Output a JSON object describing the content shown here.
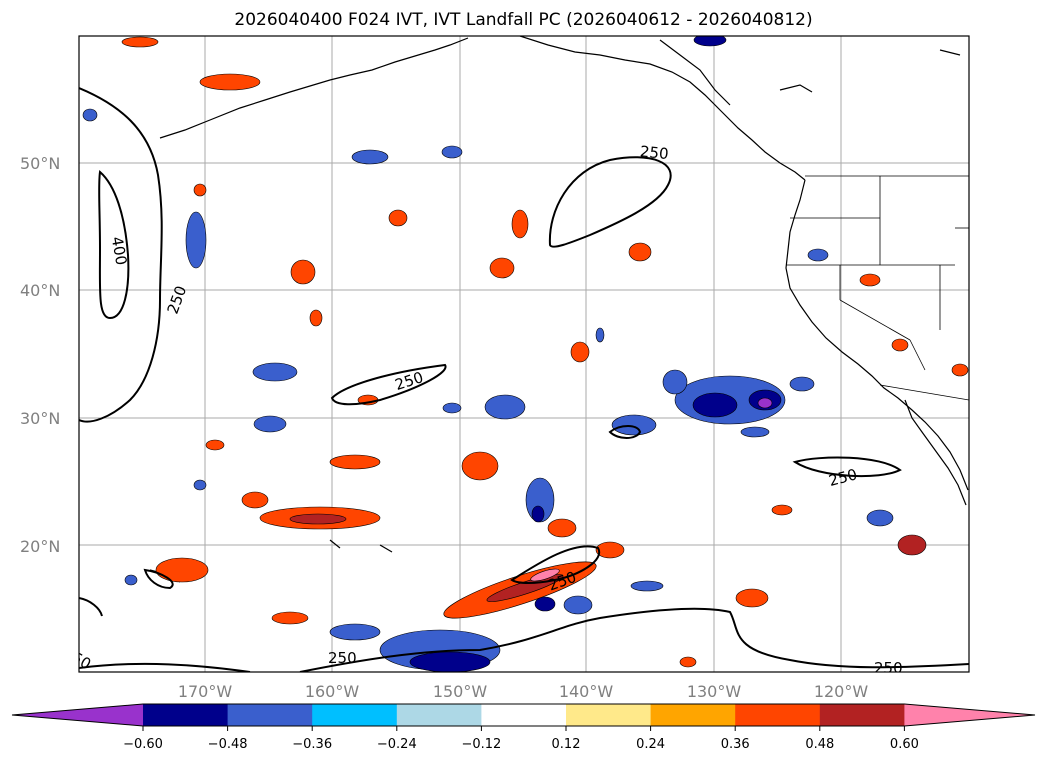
{
  "title": "2026040400 F024 IVT, IVT Landfall PC (2026040612 - 2026040812)",
  "map": {
    "lon_range": [
      -180,
      -110
    ],
    "lat_range": [
      10,
      60
    ],
    "lat_ticks": [
      "20°N",
      "30°N",
      "40°N",
      "50°N"
    ],
    "lon_ticks": [
      "170°W",
      "160°W",
      "150°W",
      "140°W",
      "130°W",
      "120°W"
    ],
    "grid": true,
    "gridline_color": "#aaaaaa",
    "land_color": "#ffffff",
    "coastline_color": "#000000"
  },
  "contours": {
    "color": "#000000",
    "labels": [
      "250",
      "250",
      "250",
      "250",
      "250",
      "250",
      "250",
      "400",
      "50"
    ]
  },
  "colorbar": {
    "orientation": "horizontal",
    "extend": "both",
    "tick_labels": [
      "−0.60",
      "−0.48",
      "−0.36",
      "−0.24",
      "−0.12",
      "0.12",
      "0.24",
      "0.36",
      "0.48",
      "0.60"
    ],
    "colors": [
      "#9932cc",
      "#00008b",
      "#3a5fcd",
      "#00bfff",
      "#add8e6",
      "#ffffff",
      "#ffe98a",
      "#ffa500",
      "#ff4500",
      "#b22222",
      "#ff82ab"
    ]
  }
}
